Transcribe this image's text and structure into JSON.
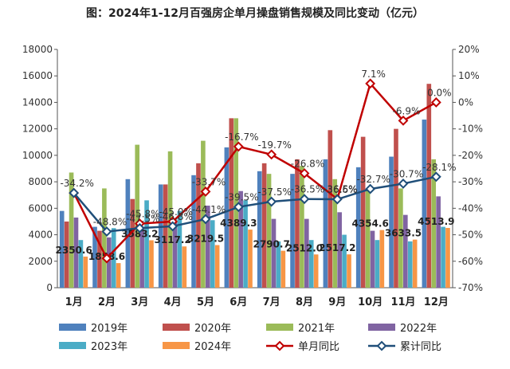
{
  "chart_data": {
    "type": "bar",
    "title": "图：2024年1-12月百强房企单月操盘销售规模及同比变动（亿元）",
    "categories": [
      "1月",
      "2月",
      "3月",
      "4月",
      "5月",
      "6月",
      "7月",
      "8月",
      "9月",
      "10月",
      "11月",
      "12月"
    ],
    "left_axis": {
      "min": 0,
      "max": 18000,
      "ticks": [
        "0",
        "2000",
        "4000",
        "6000",
        "8000",
        "10000",
        "12000",
        "14000",
        "16000",
        "18000"
      ]
    },
    "right_axis": {
      "min": -70,
      "max": 20,
      "ticks": [
        "-70%",
        "-60%",
        "-50%",
        "-40%",
        "-30%",
        "-20%",
        "-10%",
        "0%",
        "10%",
        "20%"
      ]
    },
    "bar_series": [
      {
        "name": "2019年",
        "color": "#4f81bd",
        "values": [
          5800,
          4600,
          8200,
          7800,
          8500,
          10600,
          8800,
          8600,
          9700,
          9100,
          9900,
          12700
        ]
      },
      {
        "name": "2020年",
        "color": "#c0504d",
        "values": [
          5000,
          4300,
          6700,
          7800,
          9400,
          12800,
          9400,
          9700,
          11900,
          11400,
          12000,
          15400
        ]
      },
      {
        "name": "2021年",
        "color": "#9bbb59",
        "values": [
          8700,
          7500,
          10800,
          10300,
          11100,
          12800,
          8600,
          9200,
          8200,
          7400,
          7500,
          9700
        ]
      },
      {
        "name": "2022年",
        "color": "#8064a2",
        "values": [
          5300,
          3800,
          4600,
          5100,
          6200,
          7300,
          5200,
          5200,
          5700,
          4300,
          5500,
          6900
        ]
      },
      {
        "name": "2023年",
        "color": "#4bacc6",
        "values": [
          3600,
          4500,
          6600,
          5800,
          5100,
          6600,
          3500,
          3600,
          4000,
          3600,
          3500,
          4600
        ]
      },
      {
        "name": "2024年",
        "color": "#f79646",
        "values": [
          2350.6,
          1858.6,
          3583.2,
          3117.2,
          3219.5,
          4389.3,
          2790.7,
          2512.0,
          2517.2,
          4354.6,
          3633.5,
          4513.9
        ]
      }
    ],
    "bar_data_labels": [
      "2350.6",
      "1858.6",
      "3583.2",
      "3117.2",
      "3219.5",
      "4389.3",
      "2790.7",
      "2512.0",
      "2517.2",
      "4354.6",
      "3633.5",
      "4513.9"
    ],
    "line_series": [
      {
        "name": "单月同比",
        "color": "#c00000",
        "values": [
          -34.2,
          -58.9,
          -45.8,
          -45.0,
          -33.7,
          -16.7,
          -19.7,
          -26.8,
          -36.5,
          7.1,
          -6.9,
          0.0
        ],
        "labels": [
          "-34.2%",
          "",
          "-45.8%",
          "-45.0%",
          "-33.7%",
          "-16.7%",
          "-19.7%",
          "-26.8%",
          "-36.5%",
          "7.1%",
          "-6.9%",
          "0.0%"
        ]
      },
      {
        "name": "累计同比",
        "color": "#1f4e79",
        "values": [
          -34.2,
          -48.8,
          -47.5,
          -46.8,
          -44.1,
          -39.5,
          -37.5,
          -36.5,
          -36.6,
          -32.7,
          -30.7,
          -28.1
        ],
        "labels": [
          "",
          "-48.8%",
          "-47.5%",
          "-46.8%",
          "-44.1%",
          "-39.5%",
          "-37.5%",
          "-36.5%",
          "-36.6%",
          "-32.7%",
          "-30.7%",
          "-28.1%"
        ]
      }
    ],
    "legend": {
      "position": "bottom"
    },
    "grid": false
  }
}
